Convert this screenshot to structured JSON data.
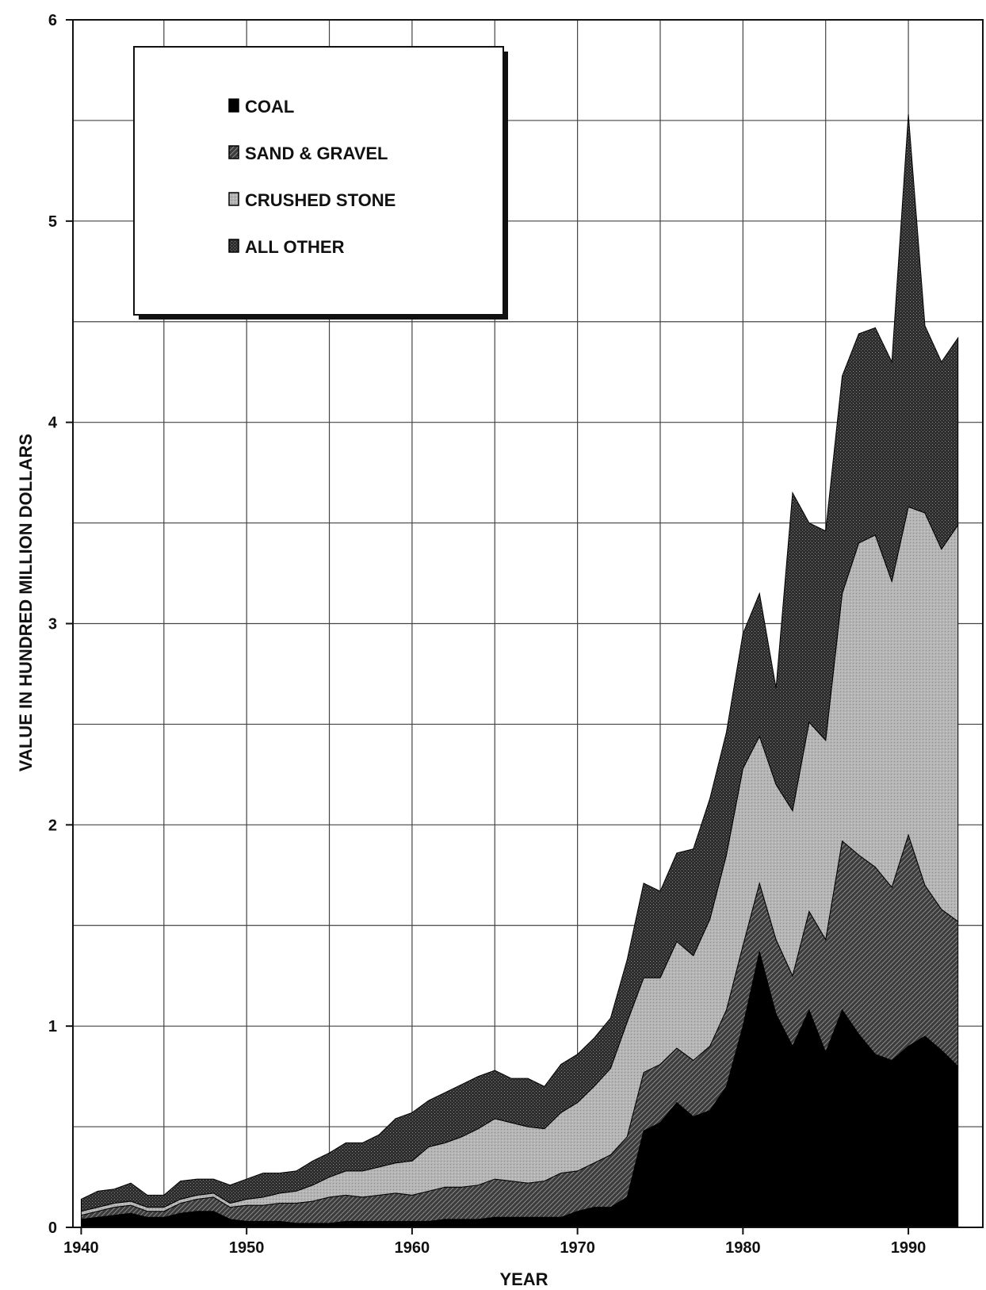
{
  "chart_data": {
    "type": "area",
    "stacked": true,
    "xlabel": "YEAR",
    "ylabel": "VALUE IN HUNDRED MILLION DOLLARS",
    "xlim": [
      1939.5,
      1994.5
    ],
    "ylim": [
      0,
      6
    ],
    "xticks": [
      1940,
      1950,
      1960,
      1970,
      1980,
      1990
    ],
    "yticks": [
      0,
      1,
      2,
      3,
      4,
      5,
      6
    ],
    "grid": true,
    "legend_position": "top-left",
    "x": [
      1940,
      1941,
      1942,
      1943,
      1944,
      1945,
      1946,
      1947,
      1948,
      1949,
      1950,
      1951,
      1952,
      1953,
      1954,
      1955,
      1956,
      1957,
      1958,
      1959,
      1960,
      1961,
      1962,
      1963,
      1964,
      1965,
      1966,
      1967,
      1968,
      1969,
      1970,
      1971,
      1972,
      1973,
      1974,
      1975,
      1976,
      1977,
      1978,
      1979,
      1980,
      1981,
      1982,
      1983,
      1984,
      1985,
      1986,
      1987,
      1988,
      1989,
      1990,
      1991,
      1992,
      1993
    ],
    "series": [
      {
        "name": "COAL",
        "pattern": "solid",
        "color": "#000000",
        "values": [
          0.04,
          0.05,
          0.06,
          0.07,
          0.05,
          0.05,
          0.07,
          0.08,
          0.08,
          0.04,
          0.03,
          0.03,
          0.03,
          0.02,
          0.02,
          0.02,
          0.03,
          0.03,
          0.03,
          0.03,
          0.03,
          0.03,
          0.04,
          0.04,
          0.04,
          0.05,
          0.05,
          0.05,
          0.05,
          0.05,
          0.08,
          0.1,
          0.1,
          0.15,
          0.48,
          0.52,
          0.62,
          0.55,
          0.58,
          0.7,
          1.0,
          1.37,
          1.06,
          0.9,
          1.08,
          0.87,
          1.08,
          0.96,
          0.86,
          0.83,
          0.9,
          0.95,
          0.88,
          0.8
        ]
      },
      {
        "name": "SAND & GRAVEL",
        "pattern": "hatched",
        "color": "#333333",
        "values": [
          0.02,
          0.03,
          0.04,
          0.04,
          0.03,
          0.03,
          0.05,
          0.06,
          0.07,
          0.06,
          0.08,
          0.08,
          0.09,
          0.1,
          0.11,
          0.13,
          0.13,
          0.12,
          0.13,
          0.14,
          0.13,
          0.15,
          0.16,
          0.16,
          0.17,
          0.19,
          0.18,
          0.17,
          0.18,
          0.22,
          0.2,
          0.22,
          0.26,
          0.3,
          0.29,
          0.29,
          0.27,
          0.28,
          0.32,
          0.38,
          0.4,
          0.34,
          0.37,
          0.35,
          0.49,
          0.56,
          0.84,
          0.89,
          0.93,
          0.86,
          1.05,
          0.75,
          0.7,
          0.72
        ]
      },
      {
        "name": "CRUSHED STONE",
        "pattern": "light-stipple",
        "color": "#aaaaaa",
        "values": [
          0.02,
          0.02,
          0.02,
          0.02,
          0.02,
          0.02,
          0.02,
          0.02,
          0.02,
          0.02,
          0.03,
          0.04,
          0.05,
          0.06,
          0.08,
          0.1,
          0.12,
          0.13,
          0.14,
          0.15,
          0.17,
          0.22,
          0.22,
          0.25,
          0.28,
          0.3,
          0.29,
          0.28,
          0.26,
          0.3,
          0.34,
          0.38,
          0.43,
          0.57,
          0.47,
          0.43,
          0.53,
          0.52,
          0.63,
          0.77,
          0.88,
          0.73,
          0.77,
          0.82,
          0.94,
          0.99,
          1.23,
          1.55,
          1.65,
          1.52,
          1.63,
          1.85,
          1.79,
          1.97
        ]
      },
      {
        "name": "ALL OTHER",
        "pattern": "dark-stipple",
        "color": "#3a3a3a",
        "values": [
          0.06,
          0.08,
          0.07,
          0.09,
          0.06,
          0.06,
          0.09,
          0.08,
          0.07,
          0.09,
          0.1,
          0.12,
          0.1,
          0.1,
          0.12,
          0.12,
          0.14,
          0.14,
          0.16,
          0.22,
          0.24,
          0.23,
          0.25,
          0.26,
          0.26,
          0.24,
          0.22,
          0.24,
          0.21,
          0.24,
          0.24,
          0.24,
          0.25,
          0.31,
          0.47,
          0.43,
          0.44,
          0.53,
          0.6,
          0.61,
          0.67,
          0.71,
          0.48,
          1.58,
          0.99,
          1.04,
          1.08,
          1.04,
          1.03,
          1.09,
          1.95,
          0.93,
          0.93,
          0.93
        ]
      }
    ]
  }
}
